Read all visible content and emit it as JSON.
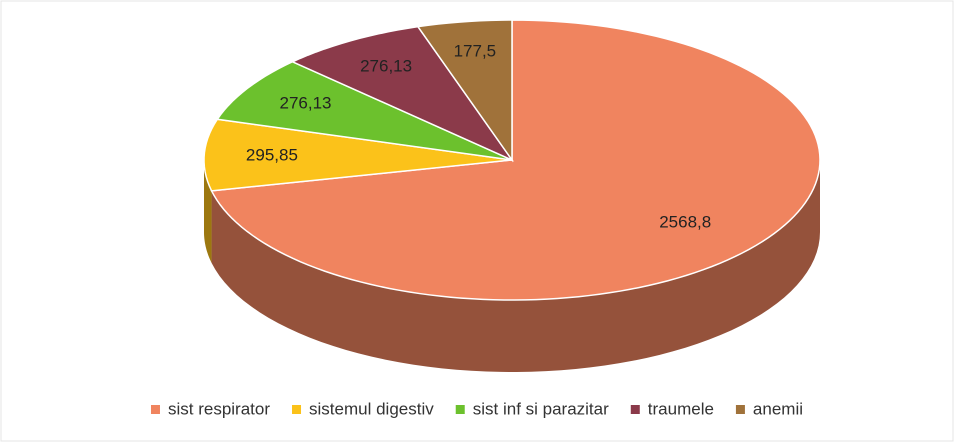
{
  "chart_data": {
    "type": "pie",
    "categories": [
      "sist respirator",
      "sistemul digestiv",
      "sist inf si parazitar",
      "traumele",
      "anemii"
    ],
    "values": [
      2568.8,
      295.85,
      276.13,
      276.13,
      177.5
    ],
    "value_labels": [
      "2568,8",
      "295,85",
      "276,13",
      "276,13",
      "177,5"
    ],
    "colors": [
      "#f0845f",
      "#fbc21a",
      "#6cc12d",
      "#8b3a4a",
      "#a0723a"
    ],
    "legend": "bottom"
  }
}
